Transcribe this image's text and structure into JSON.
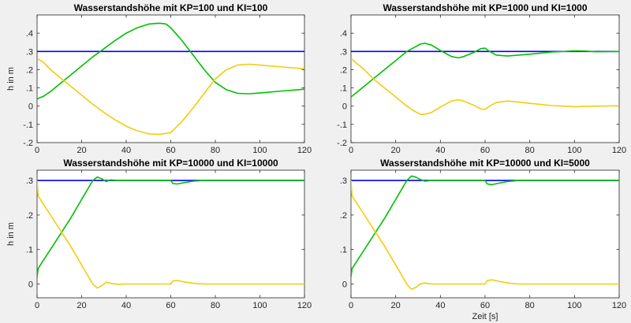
{
  "figure": {
    "background": "#f0f0f0",
    "colors": {
      "setpoint": "#0000ff",
      "level": "#00c000",
      "error": "#f2cc0d"
    }
  },
  "chart_data": [
    {
      "type": "line",
      "title": "Wasserstandshöhe mit KP=100 und KI=100",
      "xlabel": "",
      "ylabel": "h in m",
      "xlim": [
        0,
        120
      ],
      "ylim": [
        -0.2,
        0.5
      ],
      "xticks": [
        0,
        20,
        40,
        60,
        80,
        100,
        120
      ],
      "yticks": [
        -0.2,
        -0.1,
        0,
        0.1,
        0.2,
        0.3,
        0.4
      ],
      "grid": false,
      "series": [
        {
          "color": "#0000ff",
          "x": [
            0,
            120
          ],
          "y": [
            0.3,
            0.3
          ]
        },
        {
          "color": "#00c000",
          "x": [
            0,
            3,
            6,
            10,
            15,
            20,
            25,
            30,
            35,
            40,
            45,
            50,
            55,
            58,
            60,
            65,
            70,
            75,
            80,
            85,
            90,
            95,
            100,
            110,
            120
          ],
          "y": [
            0.04,
            0.055,
            0.08,
            0.12,
            0.17,
            0.22,
            0.27,
            0.315,
            0.36,
            0.4,
            0.43,
            0.45,
            0.455,
            0.45,
            0.43,
            0.36,
            0.28,
            0.2,
            0.13,
            0.09,
            0.07,
            0.068,
            0.072,
            0.083,
            0.093
          ]
        },
        {
          "color": "#f2cc0d",
          "x": [
            0,
            3,
            6,
            10,
            15,
            20,
            25,
            30,
            35,
            40,
            45,
            50,
            55,
            60,
            65,
            70,
            75,
            80,
            85,
            90,
            95,
            100,
            110,
            120
          ],
          "y": [
            0.26,
            0.24,
            0.2,
            0.16,
            0.11,
            0.06,
            0.01,
            -0.035,
            -0.075,
            -0.11,
            -0.135,
            -0.152,
            -0.155,
            -0.145,
            -0.085,
            -0.01,
            0.07,
            0.15,
            0.2,
            0.225,
            0.23,
            0.225,
            0.215,
            0.205
          ]
        }
      ]
    },
    {
      "type": "line",
      "title": "Wasserstandshöhe mit KP=1000 und KI=1000",
      "xlabel": "",
      "ylabel": "",
      "xlim": [
        0,
        120
      ],
      "ylim": [
        -0.2,
        0.5
      ],
      "xticks": [
        0,
        20,
        40,
        60,
        80,
        100,
        120
      ],
      "yticks": [
        -0.2,
        -0.1,
        0,
        0.1,
        0.2,
        0.3,
        0.4
      ],
      "grid": false,
      "series": [
        {
          "color": "#0000ff",
          "x": [
            0,
            120
          ],
          "y": [
            0.3,
            0.3
          ]
        },
        {
          "color": "#00c000",
          "x": [
            0,
            3,
            6,
            10,
            15,
            20,
            25,
            28,
            31,
            33,
            36,
            40,
            45,
            48,
            50,
            55,
            58,
            60,
            62,
            65,
            70,
            80,
            90,
            100,
            105,
            110,
            120
          ],
          "y": [
            0.05,
            0.08,
            0.11,
            0.15,
            0.2,
            0.25,
            0.3,
            0.32,
            0.34,
            0.345,
            0.335,
            0.305,
            0.272,
            0.265,
            0.27,
            0.295,
            0.315,
            0.318,
            0.3,
            0.28,
            0.275,
            0.285,
            0.297,
            0.303,
            0.302,
            0.298,
            0.3
          ]
        },
        {
          "color": "#f2cc0d",
          "x": [
            0,
            3,
            6,
            10,
            15,
            20,
            25,
            28,
            31,
            33,
            36,
            40,
            45,
            48,
            50,
            55,
            58,
            60,
            62,
            65,
            70,
            75,
            80,
            90,
            100,
            110,
            120
          ],
          "y": [
            0.26,
            0.23,
            0.2,
            0.15,
            0.1,
            0.05,
            0.0,
            -0.025,
            -0.045,
            -0.045,
            -0.035,
            -0.005,
            0.028,
            0.035,
            0.03,
            0.005,
            -0.015,
            -0.018,
            0.0,
            0.02,
            0.028,
            0.022,
            0.015,
            0.003,
            -0.003,
            0.0,
            0.002
          ]
        }
      ]
    },
    {
      "type": "line",
      "title": "Wasserstandshöhe mit KP=10000 und KI=10000",
      "xlabel": "",
      "ylabel": "h in m",
      "xlim": [
        0,
        120
      ],
      "ylim": [
        -0.04,
        0.33
      ],
      "xticks": [
        0,
        20,
        40,
        60,
        80,
        100,
        120
      ],
      "yticks": [
        0,
        0.1,
        0.2,
        0.3
      ],
      "grid": false,
      "series": [
        {
          "color": "#0000ff",
          "x": [
            0,
            120
          ],
          "y": [
            0.3,
            0.3
          ]
        },
        {
          "color": "#00c000",
          "x": [
            0,
            0.5,
            2,
            5,
            10,
            15,
            20,
            25,
            27,
            29,
            31,
            33,
            36,
            40,
            50,
            60,
            61,
            63,
            66,
            70,
            75,
            80,
            90,
            100,
            120
          ],
          "y": [
            0.02,
            0.045,
            0.06,
            0.09,
            0.14,
            0.19,
            0.245,
            0.3,
            0.31,
            0.305,
            0.297,
            0.302,
            0.3,
            0.3,
            0.3,
            0.3,
            0.291,
            0.29,
            0.294,
            0.298,
            0.3,
            0.3,
            0.3,
            0.3,
            0.3
          ]
        },
        {
          "color": "#f2cc0d",
          "x": [
            0,
            0.5,
            2,
            5,
            10,
            15,
            20,
            25,
            27,
            29,
            31,
            33,
            36,
            40,
            50,
            60,
            61,
            63,
            66,
            70,
            75,
            80,
            90,
            100,
            120
          ],
          "y": [
            0.3,
            0.255,
            0.24,
            0.21,
            0.16,
            0.11,
            0.055,
            0.0,
            -0.012,
            -0.005,
            0.005,
            0.002,
            -0.001,
            0.0,
            0.0,
            0.0,
            0.009,
            0.01,
            0.006,
            0.002,
            0.0,
            0.0,
            0.0,
            0.0,
            0.0
          ]
        }
      ]
    },
    {
      "type": "line",
      "title": "Wasserstandshöhe mit KP=10000 und KI=5000",
      "xlabel": "Zeit [s]",
      "ylabel": "",
      "xlim": [
        0,
        120
      ],
      "ylim": [
        -0.04,
        0.33
      ],
      "xticks": [
        0,
        20,
        40,
        60,
        80,
        100,
        120
      ],
      "yticks": [
        0,
        0.1,
        0.2,
        0.3
      ],
      "grid": false,
      "series": [
        {
          "color": "#0000ff",
          "x": [
            0,
            120
          ],
          "y": [
            0.3,
            0.3
          ]
        },
        {
          "color": "#00c000",
          "x": [
            0,
            0.5,
            2,
            5,
            10,
            15,
            20,
            25,
            27,
            29,
            31,
            33,
            36,
            40,
            50,
            60,
            61,
            63,
            66,
            70,
            75,
            80,
            90,
            100,
            120
          ],
          "y": [
            0.02,
            0.045,
            0.06,
            0.09,
            0.14,
            0.19,
            0.245,
            0.3,
            0.313,
            0.31,
            0.303,
            0.298,
            0.3,
            0.3,
            0.3,
            0.3,
            0.29,
            0.288,
            0.292,
            0.297,
            0.3,
            0.3,
            0.3,
            0.3,
            0.3
          ]
        },
        {
          "color": "#f2cc0d",
          "x": [
            0,
            0.5,
            2,
            5,
            10,
            15,
            20,
            25,
            27,
            29,
            31,
            33,
            36,
            40,
            50,
            60,
            61,
            63,
            66,
            70,
            75,
            80,
            90,
            100,
            120
          ],
          "y": [
            0.3,
            0.255,
            0.24,
            0.21,
            0.16,
            0.11,
            0.055,
            0.0,
            -0.015,
            -0.01,
            0.0,
            0.003,
            0.0,
            0.0,
            0.0,
            0.0,
            0.01,
            0.012,
            0.008,
            0.003,
            0.0,
            0.0,
            0.0,
            0.0,
            0.0
          ]
        }
      ]
    }
  ]
}
